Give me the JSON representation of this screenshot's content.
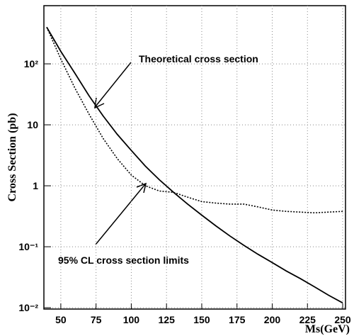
{
  "chart_data": {
    "type": "line",
    "xlabel": "Ms(GeV)",
    "ylabel": "Cross Section (pb)",
    "log_y": true,
    "grid": true,
    "x": [
      40,
      50,
      60,
      70,
      80,
      90,
      100,
      110,
      120,
      130,
      140,
      150,
      160,
      170,
      180,
      190,
      200,
      210,
      220,
      230,
      240,
      250
    ],
    "series": [
      {
        "color": "#000000",
        "style": "solid",
        "values": [
          400,
          160,
          70,
          30,
          14,
          7,
          3.8,
          2.1,
          1.25,
          0.78,
          0.5,
          0.33,
          0.22,
          0.15,
          0.105,
          0.075,
          0.055,
          0.04,
          0.03,
          0.022,
          0.016,
          0.012
        ]
      },
      {
        "color": "#000000",
        "style": "dotted",
        "values": [
          400,
          120,
          40,
          15,
          6,
          2.8,
          1.5,
          1.0,
          0.82,
          0.78,
          0.65,
          0.55,
          0.52,
          0.5,
          0.5,
          0.45,
          0.4,
          0.38,
          0.37,
          0.36,
          0.37,
          0.38
        ]
      }
    ],
    "annotations": [
      "Theoretical cross section",
      "95% CL cross section limits"
    ],
    "xlim": [
      38,
      252
    ],
    "ylim": [
      0.0095,
      900
    ],
    "xticks": [
      50,
      75,
      100,
      125,
      150,
      175,
      200,
      225,
      250
    ],
    "yticks": [
      {
        "value": 0.01,
        "label": "10⁻²"
      },
      {
        "value": 0.1,
        "label": "10⁻¹"
      },
      1,
      10,
      {
        "value": 100,
        "label": "10²"
      }
    ]
  }
}
